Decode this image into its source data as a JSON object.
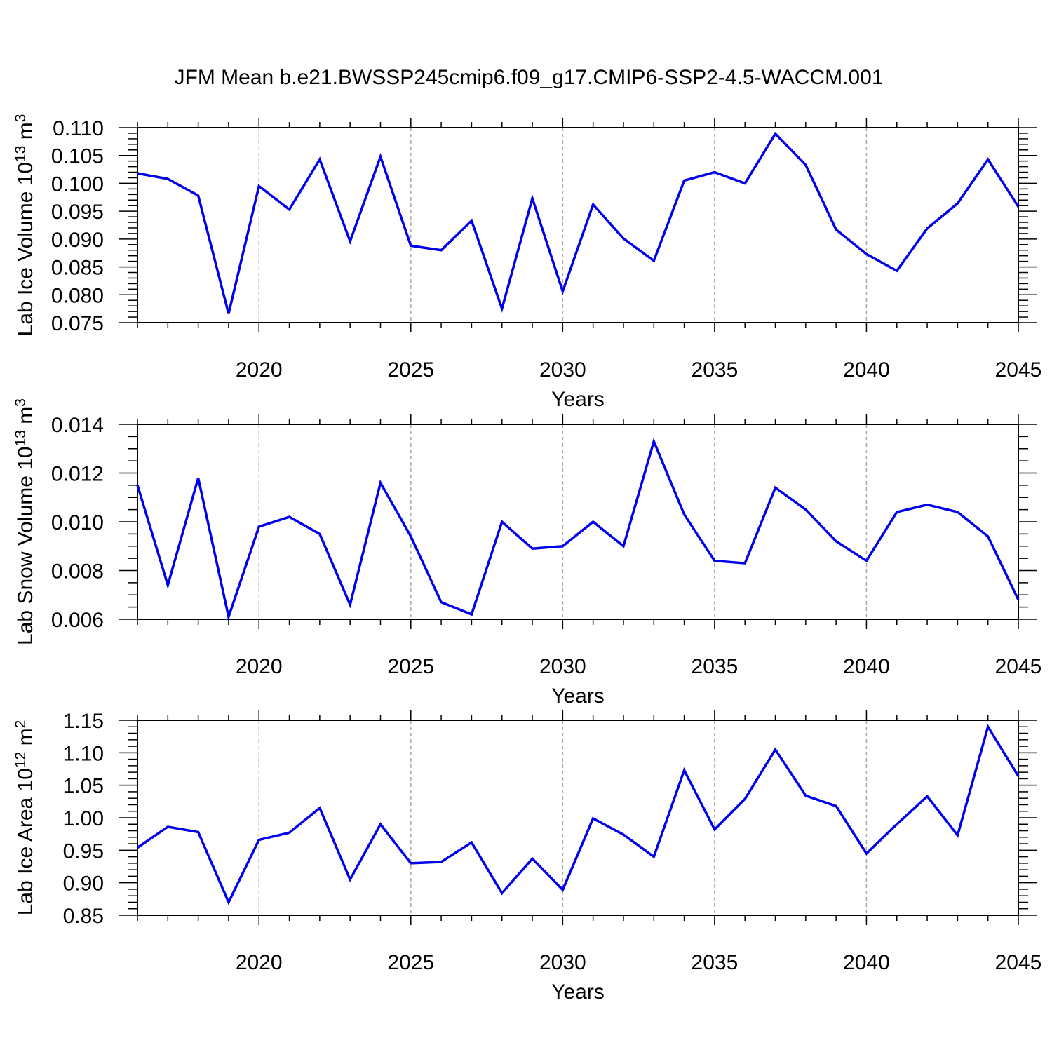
{
  "figure": {
    "title": "JFM Mean b.e21.BWSSP245cmip6.f09_g17.CMIP6-SSP2-4.5-WACCM.001",
    "line_color": "#0000ee",
    "axis_color": "#000000",
    "grid_color": "#aaaaaa",
    "background": "#ffffff",
    "legend": "none"
  },
  "chart_data": [
    {
      "id": "ice-volume",
      "type": "line",
      "series_name": "Lab Ice Volume",
      "ylabel_plain": "Lab Ice Volume 10^13 m^3",
      "ylabel_parts": [
        {
          "text": "Lab Ice Volume 10",
          "sup": false
        },
        {
          "text": "13",
          "sup": true
        },
        {
          "text": " m",
          "sup": false
        },
        {
          "text": "3",
          "sup": true
        }
      ],
      "xlabel": "Years",
      "x": [
        2016,
        2017,
        2018,
        2019,
        2020,
        2021,
        2022,
        2023,
        2024,
        2025,
        2026,
        2027,
        2028,
        2029,
        2030,
        2031,
        2032,
        2033,
        2034,
        2035,
        2036,
        2037,
        2038,
        2039,
        2040,
        2041,
        2042,
        2043,
        2044,
        2045
      ],
      "values": [
        0.1018,
        0.1008,
        0.0978,
        0.0766,
        0.0995,
        0.0953,
        0.1043,
        0.0896,
        0.1048,
        0.0888,
        0.088,
        0.0933,
        0.0775,
        0.0973,
        0.0806,
        0.0962,
        0.0901,
        0.0861,
        0.1005,
        0.102,
        0.1,
        0.1089,
        0.1033,
        0.0917,
        0.0873,
        0.0843,
        0.0919,
        0.0964,
        0.1043,
        0.0958
      ],
      "ylim": [
        0.075,
        0.11
      ],
      "ymajor": 0.005,
      "yminor": 0.001,
      "ydecimals": 3,
      "xlim": [
        2016,
        2045
      ],
      "xmajor": 5,
      "xminor": 1,
      "xtick_labels": [
        "2020",
        "2025",
        "2030",
        "2035",
        "2040",
        "2045"
      ],
      "grid": "vertical dashed lines at major x ticks"
    },
    {
      "id": "snow-volume",
      "type": "line",
      "series_name": "Lab Snow Volume",
      "ylabel_plain": "Lab Snow Volume 10^13 m^3",
      "ylabel_parts": [
        {
          "text": "Lab Snow Volume 10",
          "sup": false
        },
        {
          "text": "13",
          "sup": true
        },
        {
          "text": " m",
          "sup": false
        },
        {
          "text": "3",
          "sup": true
        }
      ],
      "xlabel": "Years",
      "x": [
        2016,
        2017,
        2018,
        2019,
        2020,
        2021,
        2022,
        2023,
        2024,
        2025,
        2026,
        2027,
        2028,
        2029,
        2030,
        2031,
        2032,
        2033,
        2034,
        2035,
        2036,
        2037,
        2038,
        2039,
        2040,
        2041,
        2042,
        2043,
        2044,
        2045
      ],
      "values": [
        0.0115,
        0.0074,
        0.0118,
        0.0061,
        0.0098,
        0.0102,
        0.0095,
        0.0066,
        0.0116,
        0.0094,
        0.0067,
        0.0062,
        0.01,
        0.0089,
        0.009,
        0.01,
        0.009,
        0.0133,
        0.0103,
        0.0084,
        0.0083,
        0.0114,
        0.0105,
        0.0092,
        0.0084,
        0.0104,
        0.0107,
        0.0104,
        0.0094,
        0.0068
      ],
      "ylim": [
        0.006,
        0.014
      ],
      "ymajor": 0.002,
      "yminor": 0.0005,
      "ydecimals": 3,
      "xlim": [
        2016,
        2045
      ],
      "xmajor": 5,
      "xminor": 1,
      "xtick_labels": [
        "2020",
        "2025",
        "2030",
        "2035",
        "2040",
        "2045"
      ],
      "grid": "vertical dashed lines at major x ticks"
    },
    {
      "id": "ice-area",
      "type": "line",
      "series_name": "Lab Ice Area",
      "ylabel_plain": "Lab Ice Area 10^12 m^2",
      "ylabel_parts": [
        {
          "text": "Lab Ice Area 10",
          "sup": false
        },
        {
          "text": "12",
          "sup": true
        },
        {
          "text": " m",
          "sup": false
        },
        {
          "text": "2",
          "sup": true
        }
      ],
      "xlabel": "Years",
      "x": [
        2016,
        2017,
        2018,
        2019,
        2020,
        2021,
        2022,
        2023,
        2024,
        2025,
        2026,
        2027,
        2028,
        2029,
        2030,
        2031,
        2032,
        2033,
        2034,
        2035,
        2036,
        2037,
        2038,
        2039,
        2040,
        2041,
        2042,
        2043,
        2044,
        2045
      ],
      "values": [
        0.954,
        0.986,
        0.978,
        0.87,
        0.966,
        0.977,
        1.015,
        0.905,
        0.99,
        0.93,
        0.932,
        0.962,
        0.884,
        0.937,
        0.889,
        0.999,
        0.974,
        0.94,
        1.073,
        0.982,
        1.029,
        1.105,
        1.034,
        1.018,
        0.945,
        0.99,
        1.033,
        0.973,
        1.14,
        1.064
      ],
      "ylim": [
        0.85,
        1.15
      ],
      "ymajor": 0.05,
      "yminor": 0.01,
      "ydecimals": 2,
      "xlim": [
        2016,
        2045
      ],
      "xmajor": 5,
      "xminor": 1,
      "xtick_labels": [
        "2020",
        "2025",
        "2030",
        "2035",
        "2040",
        "2045"
      ],
      "grid": "vertical dashed lines at major x ticks"
    }
  ]
}
